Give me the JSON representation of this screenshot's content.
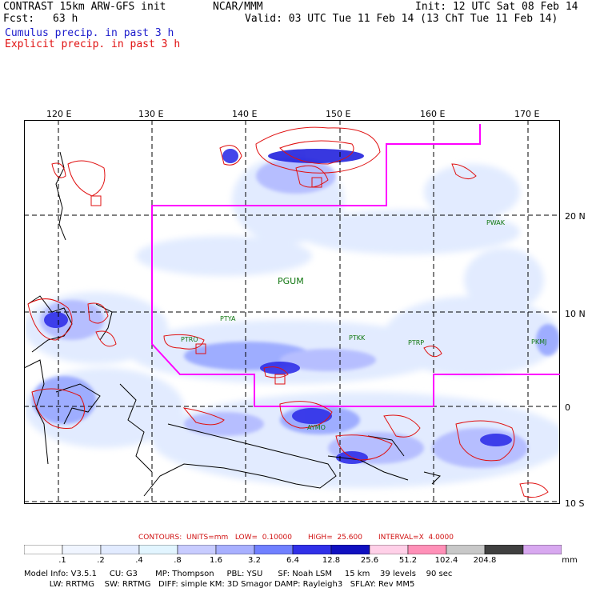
{
  "header": {
    "title": "CONTRAST 15km ARW-GFS init",
    "org": "NCAR/MMM",
    "init": "Init: 12 UTC Sat 08 Feb 14",
    "fcst_label": "Fcst:",
    "fcst_value": "63 h",
    "valid": "Valid: 03 UTC Tue 11 Feb 14 (13 ChT Tue 11 Feb 14)",
    "legend_cumulus": "Cumulus precip. in past 3 h",
    "legend_explicit": "Explicit precip. in past 3 h"
  },
  "map": {
    "lon_labels": [
      "120 E",
      "130 E",
      "140 E",
      "150 E",
      "160 E",
      "170 E"
    ],
    "lat_labels": [
      "20 N",
      "10 N",
      "0",
      "10 S"
    ],
    "stations": [
      {
        "id": "PGUM",
        "big": true
      },
      {
        "id": "PTYA"
      },
      {
        "id": "PTRO"
      },
      {
        "id": "PTKK"
      },
      {
        "id": "PTRP"
      },
      {
        "id": "PKMJ"
      },
      {
        "id": "PWAK"
      },
      {
        "id": "AYMO"
      }
    ],
    "colors": {
      "boundary": "#ff00ff",
      "contour": "#e01010",
      "coast": "#000000",
      "precip_light": "#dde8ff",
      "precip_mid": "#8899ff",
      "precip_heavy": "#2222dd"
    }
  },
  "contours_line": "CONTOURS:  UNITS=mm   LOW=  0.10000       HIGH=  25.600       INTERVAL=X  4.0000",
  "colorbar": {
    "labels": [
      ".1",
      ".2",
      ".4",
      ".8",
      "1.6",
      "3.2",
      "6.4",
      "12.8",
      "25.6",
      "51.2",
      "102.4",
      "204.8"
    ],
    "unit": "mm",
    "colors": [
      "#ffffff",
      "#f0f5ff",
      "#e2ebff",
      "#e2f5ff",
      "#c8ccff",
      "#a8b0ff",
      "#7080ff",
      "#3030e8",
      "#1010c0",
      "#ffd0e8",
      "#ff90b8",
      "#c8c8c8",
      "#404040",
      "#d8a8f0"
    ]
  },
  "footer": {
    "line1": "Model Info: V3.5.1     CU: G3       MP: Thompson     PBL: YSU      SF: Noah LSM     15 km    39 levels    90 sec",
    "line2": "          LW: RRTMG    SW: RRTMG   DIFF: simple KM: 3D Smagor DAMP: Rayleigh3   SFLAY: Rev MM5"
  }
}
